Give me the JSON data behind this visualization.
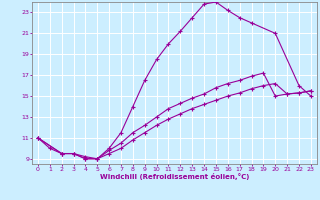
{
  "bg_color": "#cceeff",
  "grid_color": "#aaddcc",
  "line_color": "#990099",
  "xlabel": "Windchill (Refroidissement éolien,°C)",
  "xlim": [
    -0.5,
    23.5
  ],
  "ylim": [
    8.5,
    24.0
  ],
  "xticks": [
    0,
    1,
    2,
    3,
    4,
    5,
    6,
    7,
    8,
    9,
    10,
    11,
    12,
    13,
    14,
    15,
    16,
    17,
    18,
    19,
    20,
    21,
    22,
    23
  ],
  "yticks": [
    9,
    11,
    13,
    15,
    17,
    19,
    21,
    23
  ],
  "curve1_x": [
    0,
    1,
    2,
    3,
    4,
    5,
    6,
    7,
    8,
    9,
    10,
    11,
    12,
    13,
    14,
    15,
    16,
    17,
    18,
    20,
    22,
    23
  ],
  "curve1_y": [
    11,
    10,
    9.5,
    9.5,
    9,
    9,
    10,
    11.5,
    14,
    16.5,
    18.5,
    20,
    21.2,
    22.5,
    23.8,
    24.0,
    23.2,
    22.5,
    22,
    21,
    16,
    15
  ],
  "curve2_x": [
    0,
    2,
    3,
    4,
    5,
    6,
    7,
    8,
    9,
    10,
    11,
    12,
    13,
    14,
    15,
    16,
    17,
    18,
    19,
    20,
    21,
    22,
    23
  ],
  "curve2_y": [
    11,
    9.5,
    9.5,
    9.2,
    9,
    9.8,
    10.5,
    11.5,
    12.2,
    13.0,
    13.8,
    14.3,
    14.8,
    15.2,
    15.8,
    16.2,
    16.5,
    16.9,
    17.2,
    15,
    15.2,
    15.3,
    15.5
  ],
  "curve3_x": [
    0,
    2,
    3,
    4,
    5,
    6,
    7,
    8,
    9,
    10,
    11,
    12,
    13,
    14,
    15,
    16,
    17,
    18,
    19,
    20,
    21,
    22,
    23
  ],
  "curve3_y": [
    11,
    9.5,
    9.5,
    9.0,
    9,
    9.5,
    10.0,
    10.8,
    11.5,
    12.2,
    12.8,
    13.3,
    13.8,
    14.2,
    14.6,
    15.0,
    15.3,
    15.7,
    16.0,
    16.2,
    15.2,
    15.3,
    15.5
  ]
}
